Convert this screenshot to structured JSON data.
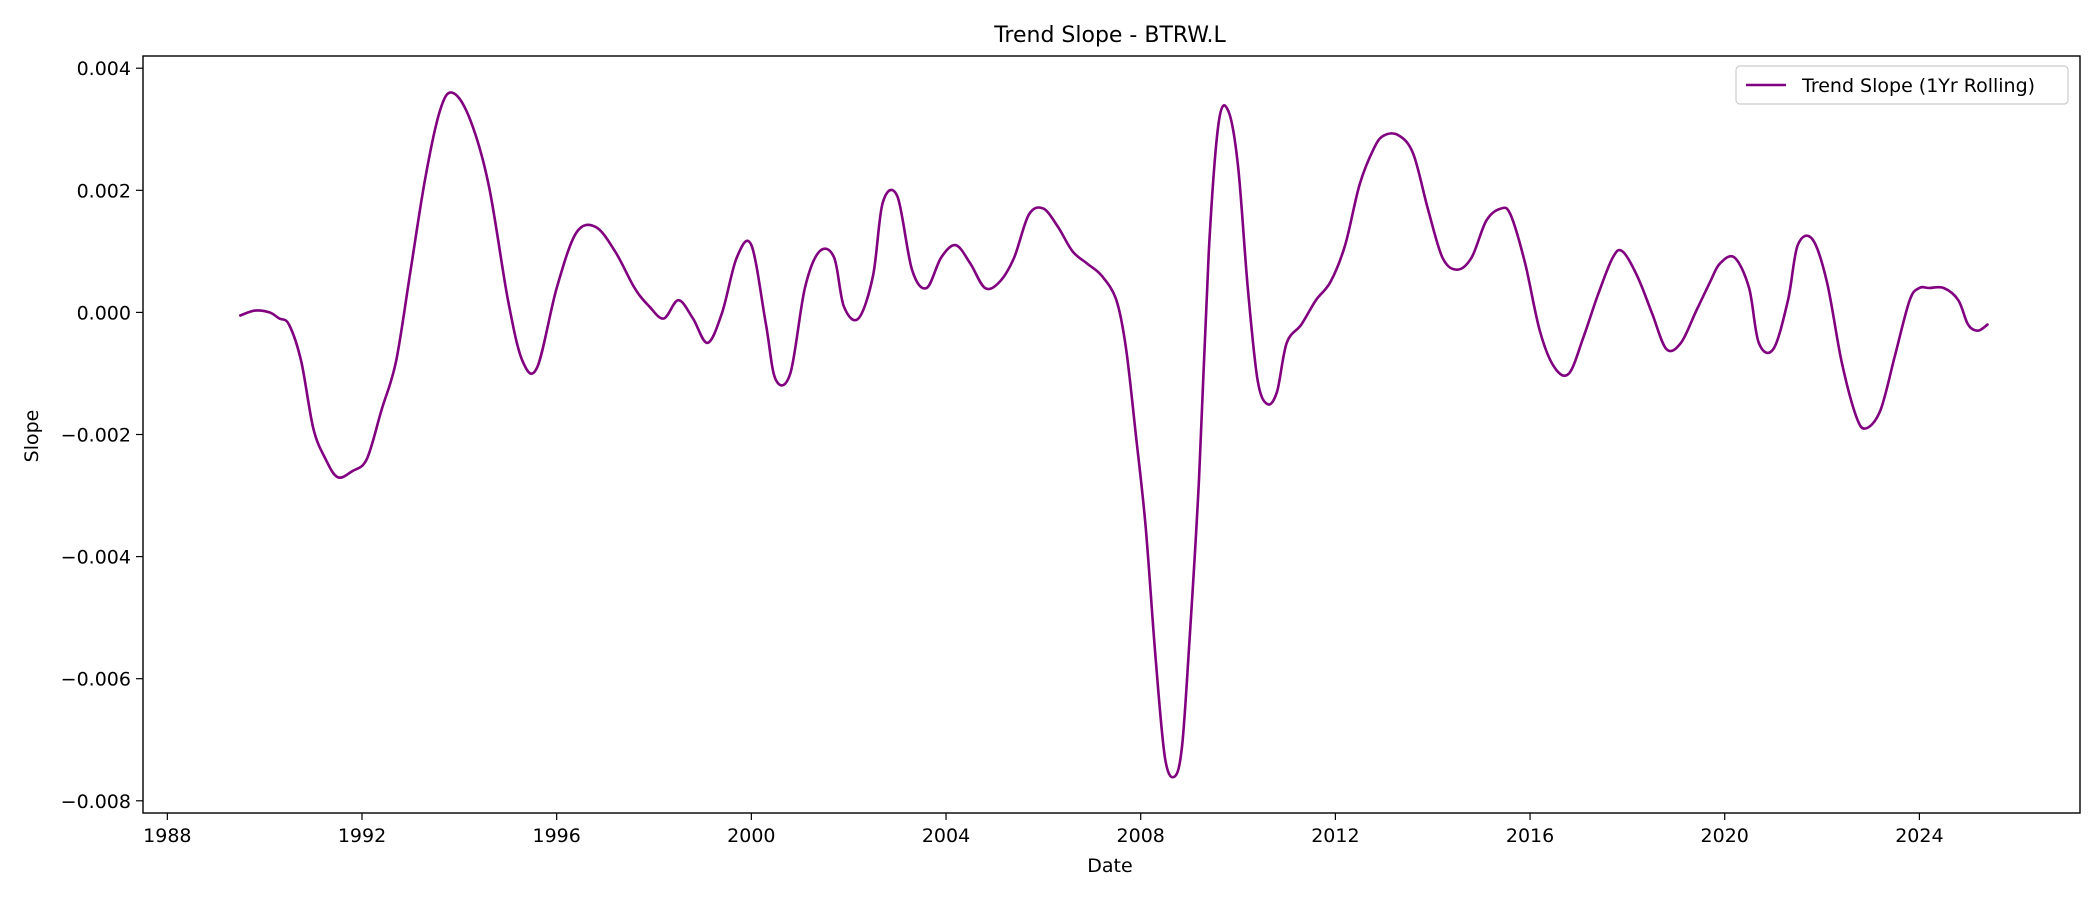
{
  "chart_data": {
    "type": "line",
    "title": "Trend Slope - BTRW.L",
    "xlabel": "Date",
    "ylabel": "Slope",
    "xlim": [
      1987.5,
      2027.3
    ],
    "ylim": [
      -0.0082,
      0.0042
    ],
    "x_ticks": [
      1988,
      1992,
      1996,
      2000,
      2004,
      2008,
      2012,
      2016,
      2020,
      2024
    ],
    "y_ticks": [
      {
        "value": 0.004,
        "label": "0.004"
      },
      {
        "value": 0.002,
        "label": "0.002"
      },
      {
        "value": 0.0,
        "label": "0.000"
      },
      {
        "value": -0.002,
        "label": "−0.002"
      },
      {
        "value": -0.004,
        "label": "−0.004"
      },
      {
        "value": -0.006,
        "label": "−0.006"
      },
      {
        "value": -0.008,
        "label": "−0.008"
      }
    ],
    "grid": false,
    "legend_position": "top-right",
    "series": [
      {
        "name": "Trend Slope (1Yr Rolling)",
        "color": "#800080",
        "x": [
          1989.5,
          1989.8,
          1990.1,
          1990.3,
          1990.5,
          1990.75,
          1991.0,
          1991.25,
          1991.5,
          1991.8,
          1992.1,
          1992.4,
          1992.7,
          1993.0,
          1993.3,
          1993.6,
          1993.85,
          1994.2,
          1994.6,
          1995.0,
          1995.3,
          1995.6,
          1996.0,
          1996.4,
          1996.8,
          1997.2,
          1997.6,
          1997.9,
          1998.2,
          1998.5,
          1998.8,
          1999.1,
          1999.4,
          1999.7,
          2000.0,
          2000.3,
          2000.5,
          2000.8,
          2001.1,
          2001.4,
          2001.7,
          2001.9,
          2002.2,
          2002.5,
          2002.7,
          2003.0,
          2003.3,
          2003.6,
          2003.9,
          2004.2,
          2004.5,
          2004.8,
          2005.1,
          2005.4,
          2005.7,
          2006.0,
          2006.3,
          2006.6,
          2006.9,
          2007.2,
          2007.5,
          2007.7,
          2007.9,
          2008.1,
          2008.3,
          2008.5,
          2008.7,
          2008.85,
          2009.0,
          2009.2,
          2009.4,
          2009.6,
          2009.8,
          2010.0,
          2010.2,
          2010.4,
          2010.6,
          2010.8,
          2011.0,
          2011.3,
          2011.6,
          2011.9,
          2012.2,
          2012.5,
          2012.8,
          2013.0,
          2013.3,
          2013.6,
          2013.9,
          2014.2,
          2014.5,
          2014.8,
          2015.1,
          2015.4,
          2015.6,
          2015.9,
          2016.2,
          2016.5,
          2016.8,
          2017.1,
          2017.4,
          2017.7,
          2017.9,
          2018.2,
          2018.5,
          2018.8,
          2019.1,
          2019.4,
          2019.7,
          2019.9,
          2020.2,
          2020.5,
          2020.7,
          2021.0,
          2021.3,
          2021.5,
          2021.8,
          2022.1,
          2022.4,
          2022.7,
          2022.9,
          2023.2,
          2023.5,
          2023.8,
          2024.0,
          2024.2,
          2024.5,
          2024.8,
          2025.0,
          2025.2,
          2025.4
        ],
        "y": [
          -5e-05,
          3e-05,
          0.0,
          -0.0001,
          -0.0002,
          -0.0008,
          -0.0019,
          -0.0024,
          -0.0027,
          -0.0026,
          -0.0024,
          -0.0016,
          -0.0008,
          0.0007,
          0.0022,
          0.0033,
          0.0036,
          0.0032,
          0.0021,
          0.0002,
          -0.0008,
          -0.0009,
          0.0004,
          0.0013,
          0.0014,
          0.001,
          0.0004,
          0.0001,
          -0.0001,
          0.0002,
          -0.0001,
          -0.0005,
          0.0,
          0.0009,
          0.0011,
          -0.0002,
          -0.0011,
          -0.001,
          0.0004,
          0.001,
          0.0009,
          0.0001,
          -0.0001,
          0.0006,
          0.0018,
          0.0019,
          0.0007,
          0.0004,
          0.0009,
          0.0011,
          0.0008,
          0.0004,
          0.0005,
          0.0009,
          0.0016,
          0.0017,
          0.0014,
          0.001,
          0.0008,
          0.0006,
          0.0002,
          -0.0006,
          -0.002,
          -0.0035,
          -0.0056,
          -0.0073,
          -0.0076,
          -0.0071,
          -0.0054,
          -0.0027,
          0.001,
          0.0031,
          0.0033,
          0.0024,
          0.0004,
          -0.0011,
          -0.0015,
          -0.0013,
          -0.0005,
          -0.0002,
          0.0002,
          0.0005,
          0.0011,
          0.0021,
          0.0027,
          0.0029,
          0.0029,
          0.0026,
          0.0017,
          0.0009,
          0.0007,
          0.0009,
          0.0015,
          0.0017,
          0.0016,
          0.0008,
          -0.0003,
          -0.0009,
          -0.001,
          -0.0004,
          0.0003,
          0.0009,
          0.001,
          0.0006,
          0.0,
          -0.0006,
          -0.0005,
          0.0,
          0.0005,
          0.0008,
          0.0009,
          0.0004,
          -0.0005,
          -0.0006,
          0.0002,
          0.0011,
          0.0012,
          0.0005,
          -0.0008,
          -0.0017,
          -0.0019,
          -0.0016,
          -0.0007,
          0.0002,
          0.0004,
          0.0004,
          0.0004,
          0.0002,
          -0.0002,
          -0.0003,
          -0.0002
        ]
      }
    ]
  }
}
